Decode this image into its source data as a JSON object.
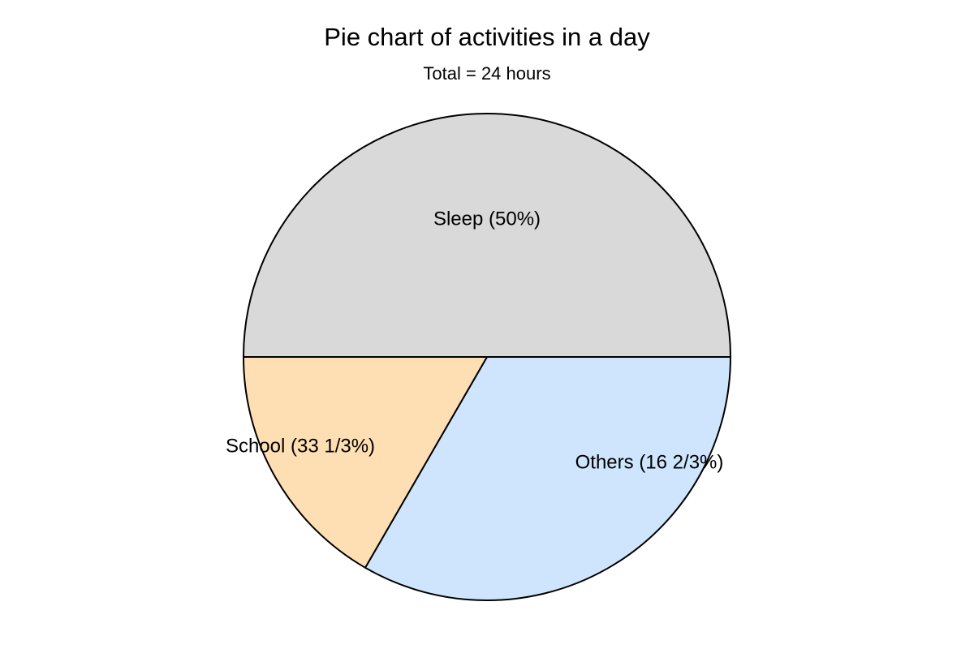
{
  "chart_data": {
    "type": "pie",
    "title": "Pie chart of activities in a day",
    "subtitle": "Total = 24 hours",
    "slices": [
      {
        "label": "Sleep (50%)",
        "value": 50,
        "color": "#d9d9d9"
      },
      {
        "label": "School (33 1/3%)",
        "value": 33.333,
        "color": "#cfe5fd"
      },
      {
        "label": "Others (16 2/3%)",
        "value": 16.667,
        "color": "#fedfb3"
      }
    ]
  }
}
